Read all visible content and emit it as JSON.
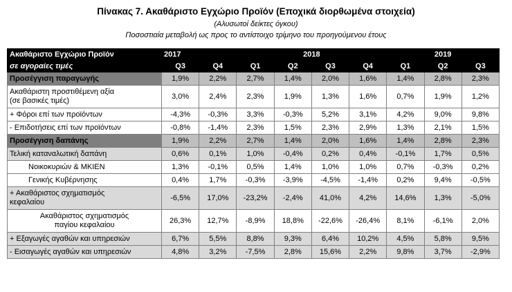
{
  "title": "Πίνακας 7. Ακαθάριστο Εγχώριο Προϊόν (Εποχικά διορθωμένα στοιχεία)",
  "subtitle1": "(Αλυσωτοί δείκτες όγκου)",
  "subtitle2": "Ποσοστιαία μεταβολή ως προς το αντίστοιχο τρίμηνο  του προηγούμενου έτους",
  "header": {
    "col_title": "Ακαθάριστο Εγχώριο Προϊόν",
    "col_subtitle": "σε αγοραίες τιμές",
    "years": [
      "2017",
      "2018",
      "2019"
    ],
    "quarters": [
      "Q3",
      "Q4",
      "Q1",
      "Q2",
      "Q3",
      "Q4",
      "Q1",
      "Q2",
      "Q3"
    ]
  },
  "rows": [
    {
      "label": "Προσέγγιση παραγωγής",
      "values": [
        "1,9%",
        "2,2%",
        "2,7%",
        "1,4%",
        "2,0%",
        "1,6%",
        "1,4%",
        "2,8%",
        "2,3%"
      ]
    },
    {
      "label": "Ακαθάριστη προστιθέμενη αξία\n(σε βασικές τιμές)",
      "values": [
        "3,0%",
        "2,4%",
        "2,3%",
        "1,9%",
        "1,3%",
        "1,6%",
        "0,7%",
        "1,9%",
        "1,2%"
      ]
    },
    {
      "label": "+  Φόροι επί των προϊόντων",
      "values": [
        "-4,3%",
        "-0,3%",
        "3,3%",
        "-0,3%",
        "5,2%",
        "3,1%",
        "4,2%",
        "9,0%",
        "9,8%"
      ]
    },
    {
      "label": "-   Επιδοτήσεις επί των προϊόντων",
      "values": [
        "-0,8%",
        "-1,4%",
        "2,3%",
        "1,5%",
        "2,3%",
        "2,9%",
        "1,3%",
        "2,1%",
        "1,5%"
      ]
    },
    {
      "label": "Προσέγγιση δαπάνης",
      "values": [
        "1,9%",
        "2,2%",
        "2,7%",
        "1,4%",
        "2,0%",
        "1,6%",
        "1,4%",
        "2,8%",
        "2,3%"
      ]
    },
    {
      "label": "Τελική καταναλωτική δαπάνη",
      "values": [
        "0,6%",
        "0,1%",
        "1,0%",
        "-0,4%",
        "0,2%",
        "0,4%",
        "-0,1%",
        "1,7%",
        "0,5%"
      ]
    },
    {
      "label": "Νοικοκυριών & ΜΚΙΕΝ",
      "values": [
        "1,3%",
        "-0,1%",
        "0,5%",
        "1,4%",
        "1,0%",
        "1,0%",
        "0,7%",
        "-0,3%",
        "0,2%"
      ]
    },
    {
      "label": "Γενικής Κυβέρνησης",
      "values": [
        "0,4%",
        "1,7%",
        "-0,3%",
        "-3,9%",
        "-4,5%",
        "-1,4%",
        "0,2%",
        "9,4%",
        "-0,5%"
      ]
    },
    {
      "label": "+ Ακαθάριστος σχηματισμός\nκεφαλαίου",
      "values": [
        "-6,5%",
        "17,0%",
        "-23,2%",
        "-2,4%",
        "41,0%",
        "4,2%",
        "14,6%",
        "1,3%",
        "-5,0%"
      ]
    },
    {
      "label": "Ακαθάριστος σχηματισμός\nπαγίου κεφαλαίου",
      "values": [
        "26,3%",
        "12,7%",
        "-8,9%",
        "18,8%",
        "-22,6%",
        "-26,4%",
        "8,1%",
        "-6,1%",
        "2,0%"
      ]
    },
    {
      "label": "+ Εξαγωγές αγαθών και υπηρεσιών",
      "values": [
        "6,7%",
        "5,5%",
        "8,8%",
        "9,3%",
        "6,4%",
        "10,2%",
        "4,5%",
        "5,8%",
        "9,5%"
      ]
    },
    {
      "label": "-  Εισαγωγές αγαθών και υπηρεσιών",
      "values": [
        "4,8%",
        "3,2%",
        "-7,5%",
        "2,8%",
        "15,6%",
        "2,2%",
        "9,8%",
        "3,7%",
        "-2,9%"
      ]
    }
  ]
}
